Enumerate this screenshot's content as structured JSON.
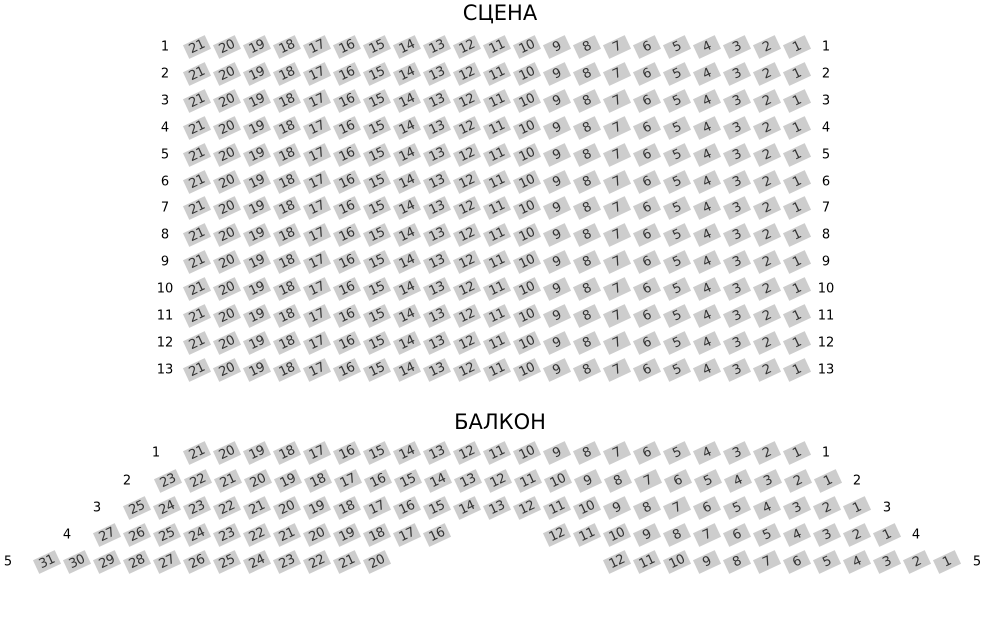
{
  "stage_title": "СЦЕНА",
  "balcony_title": "БАЛКОН",
  "seat_color": "#cdcdcd",
  "parterre": {
    "rows": [
      {
        "label": "1",
        "blocks": [
          [
            21,
            20,
            19,
            18,
            17,
            16,
            15,
            14,
            13,
            12,
            11,
            10,
            9,
            8,
            7,
            6,
            5,
            4,
            3,
            2,
            1
          ]
        ]
      },
      {
        "label": "2",
        "blocks": [
          [
            21,
            20,
            19,
            18,
            17,
            16,
            15,
            14,
            13,
            12,
            11,
            10,
            9,
            8,
            7,
            6,
            5,
            4,
            3,
            2,
            1
          ]
        ]
      },
      {
        "label": "3",
        "blocks": [
          [
            21,
            20,
            19,
            18,
            17,
            16,
            15,
            14,
            13,
            12,
            11,
            10,
            9,
            8,
            7,
            6,
            5,
            4,
            3,
            2,
            1
          ]
        ]
      },
      {
        "label": "4",
        "blocks": [
          [
            21,
            20,
            19,
            18,
            17,
            16,
            15,
            14,
            13,
            12,
            11,
            10,
            9,
            8,
            7,
            6,
            5,
            4,
            3,
            2,
            1
          ]
        ]
      },
      {
        "label": "5",
        "blocks": [
          [
            21,
            20,
            19,
            18,
            17,
            16,
            15,
            14,
            13,
            12,
            11,
            10,
            9,
            8,
            7,
            6,
            5,
            4,
            3,
            2,
            1
          ]
        ]
      },
      {
        "label": "6",
        "blocks": [
          [
            21,
            20,
            19,
            18,
            17,
            16,
            15,
            14,
            13,
            12,
            11,
            10,
            9,
            8,
            7,
            6,
            5,
            4,
            3,
            2,
            1
          ]
        ]
      },
      {
        "label": "7",
        "blocks": [
          [
            21,
            20,
            19,
            18,
            17,
            16,
            15,
            14,
            13,
            12,
            11,
            10,
            9,
            8,
            7,
            6,
            5,
            4,
            3,
            2,
            1
          ]
        ]
      },
      {
        "label": "8",
        "blocks": [
          [
            21,
            20,
            19,
            18,
            17,
            16,
            15,
            14,
            13,
            12,
            11,
            10,
            9,
            8,
            7,
            6,
            5,
            4,
            3,
            2,
            1
          ]
        ]
      },
      {
        "label": "9",
        "blocks": [
          [
            21,
            20,
            19,
            18,
            17,
            16,
            15,
            14,
            13,
            12,
            11,
            10,
            9,
            8,
            7,
            6,
            5,
            4,
            3,
            2,
            1
          ]
        ]
      },
      {
        "label": "10",
        "blocks": [
          [
            21,
            20,
            19,
            18,
            17,
            16,
            15,
            14,
            13,
            12,
            11,
            10,
            9,
            8,
            7,
            6,
            5,
            4,
            3,
            2,
            1
          ]
        ]
      },
      {
        "label": "11",
        "blocks": [
          [
            21,
            20,
            19,
            18,
            17,
            16,
            15,
            14,
            13,
            12,
            11,
            10,
            9,
            8,
            7,
            6,
            5,
            4,
            3,
            2,
            1
          ]
        ]
      },
      {
        "label": "12",
        "blocks": [
          [
            21,
            20,
            19,
            18,
            17,
            16,
            15,
            14,
            13,
            12,
            11,
            10,
            9,
            8,
            7,
            6,
            5,
            4,
            3,
            2,
            1
          ]
        ]
      },
      {
        "label": "13",
        "blocks": [
          [
            21,
            20,
            19,
            18,
            17,
            16,
            15,
            14,
            13,
            12,
            11,
            10,
            9,
            8,
            7,
            6,
            5,
            4,
            3,
            2,
            1
          ]
        ]
      }
    ]
  },
  "balcony": {
    "rows": [
      {
        "label": "1",
        "blocks": [
          [
            21,
            20,
            19,
            18,
            17,
            16,
            15,
            14,
            13,
            12,
            11,
            10,
            9,
            8,
            7,
            6,
            5,
            4,
            3,
            2,
            1
          ]
        ]
      },
      {
        "label": "2",
        "blocks": [
          [
            23,
            22,
            21,
            20,
            19,
            18,
            17,
            16,
            15,
            14,
            13,
            12,
            11,
            10,
            9,
            8,
            7,
            6,
            5,
            4,
            3,
            2,
            1
          ]
        ]
      },
      {
        "label": "3",
        "blocks": [
          [
            25,
            24,
            23,
            22,
            21,
            20,
            19,
            18,
            17,
            16,
            15,
            14,
            13,
            12,
            11,
            10,
            9,
            8,
            7,
            6,
            5,
            4,
            3,
            2,
            1
          ]
        ]
      },
      {
        "label": "4",
        "blocks": [
          [
            27,
            26,
            25,
            24,
            23,
            22,
            21,
            20,
            19,
            18,
            17,
            16
          ],
          [
            12,
            11,
            10,
            9,
            8,
            7,
            6,
            5,
            4,
            3,
            2,
            1
          ]
        ]
      },
      {
        "label": "5",
        "blocks": [
          [
            31,
            30,
            29,
            28,
            27,
            26,
            25,
            24,
            23,
            22,
            21,
            20
          ],
          [
            12,
            11,
            10,
            9,
            8,
            7,
            6,
            5,
            4,
            3,
            2,
            1
          ]
        ]
      }
    ]
  }
}
